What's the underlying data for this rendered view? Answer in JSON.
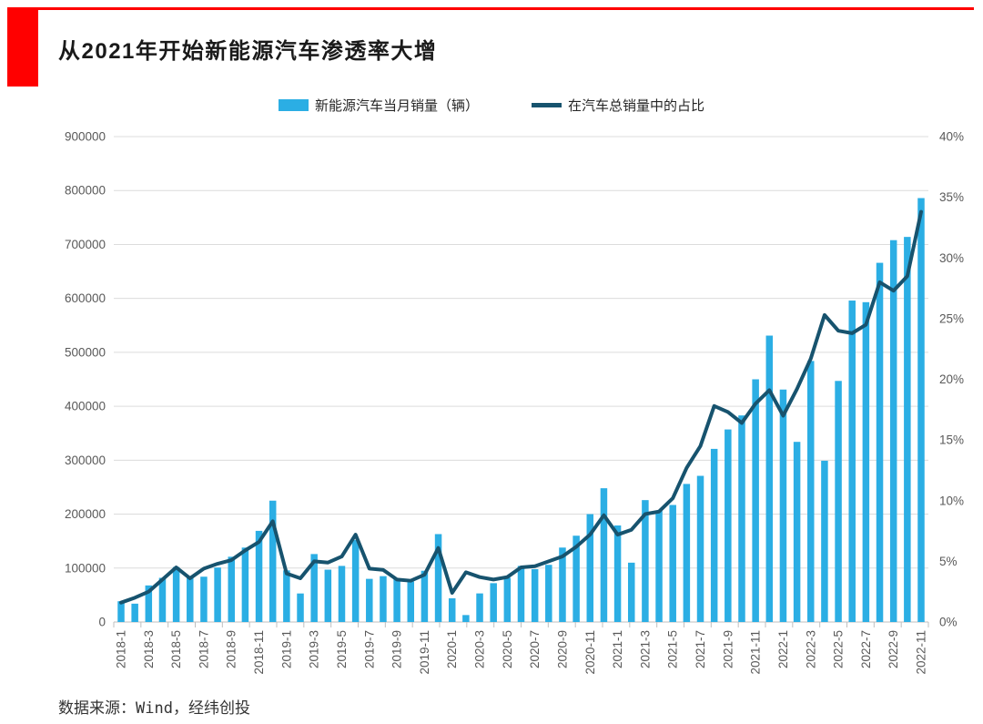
{
  "accent_color": "#FF0000",
  "header": {
    "title": "从2021年开始新能源汽车渗透率大增"
  },
  "legend": [
    {
      "label": "新能源汽车当月销量（辆）",
      "color": "#2BAEE4",
      "type": "bar"
    },
    {
      "label": "在汽车总销量中的占比",
      "color": "#17536E",
      "type": "line"
    }
  ],
  "footer": {
    "source": "数据来源：Wind，经纬创投"
  },
  "chart_data": {
    "type": "bar+line combo",
    "title": "从2021年开始新能源汽车渗透率大增",
    "grid": "horizontal",
    "legend_position": "top",
    "x_label_step": 2,
    "categories": [
      "2018-1",
      "2018-2",
      "2018-3",
      "2018-4",
      "2018-5",
      "2018-6",
      "2018-7",
      "2018-8",
      "2018-9",
      "2018-10",
      "2018-11",
      "2018-12",
      "2019-1",
      "2019-2",
      "2019-3",
      "2019-4",
      "2019-5",
      "2019-6",
      "2019-7",
      "2019-8",
      "2019-9",
      "2019-10",
      "2019-11",
      "2019-12",
      "2020-1",
      "2020-2",
      "2020-3",
      "2020-4",
      "2020-5",
      "2020-6",
      "2020-7",
      "2020-8",
      "2020-9",
      "2020-10",
      "2020-11",
      "2020-12",
      "2021-1",
      "2021-2",
      "2021-3",
      "2021-4",
      "2021-5",
      "2021-6",
      "2021-7",
      "2021-8",
      "2021-9",
      "2021-10",
      "2021-11",
      "2021-12",
      "2022-1",
      "2022-2",
      "2022-3",
      "2022-4",
      "2022-5",
      "2022-6",
      "2022-7",
      "2022-8",
      "2022-9",
      "2022-10",
      "2022-11"
    ],
    "series": [
      {
        "name": "新能源汽车当月销量（辆）",
        "type": "bar",
        "axis": "left",
        "color": "#2BAEE4",
        "values": [
          38500,
          34000,
          67800,
          81900,
          102000,
          84000,
          84000,
          101000,
          121000,
          138000,
          169000,
          225000,
          95700,
          52900,
          126000,
          97000,
          104000,
          152000,
          80000,
          85000,
          80000,
          75000,
          95000,
          163000,
          44000,
          12900,
          53000,
          72000,
          82000,
          104000,
          98000,
          106000,
          138000,
          160000,
          200000,
          248000,
          179000,
          110000,
          226000,
          206000,
          217000,
          256000,
          271000,
          321000,
          357000,
          383000,
          450000,
          531000,
          431000,
          334000,
          484000,
          299000,
          447000,
          596000,
          593000,
          666000,
          708000,
          714000,
          786000
        ]
      },
      {
        "name": "在汽车总销量中的占比",
        "type": "line",
        "axis": "right",
        "color": "#17536E",
        "values": [
          1.6,
          2.0,
          2.5,
          3.5,
          4.5,
          3.6,
          4.4,
          4.8,
          5.1,
          5.9,
          6.6,
          8.3,
          4.0,
          3.6,
          5.0,
          4.9,
          5.4,
          7.2,
          4.4,
          4.3,
          3.5,
          3.4,
          3.9,
          6.1,
          2.4,
          4.1,
          3.7,
          3.5,
          3.7,
          4.5,
          4.6,
          5.0,
          5.4,
          6.2,
          7.2,
          8.8,
          7.2,
          7.6,
          8.9,
          9.1,
          10.2,
          12.7,
          14.5,
          17.8,
          17.3,
          16.4,
          18.0,
          19.1,
          17.0,
          19.2,
          21.7,
          25.3,
          24.0,
          23.8,
          24.5,
          28.0,
          27.3,
          28.5,
          33.8
        ]
      }
    ],
    "left_axis": {
      "min": 0,
      "max": 900000,
      "step": 100000,
      "tick_labels": [
        "0",
        "100000",
        "200000",
        "300000",
        "400000",
        "500000",
        "600000",
        "700000",
        "800000",
        "900000"
      ]
    },
    "right_axis": {
      "min": 0,
      "max": 40,
      "step": 5,
      "tick_labels": [
        "0%",
        "5%",
        "10%",
        "15%",
        "20%",
        "25%",
        "30%",
        "35%",
        "40%"
      ]
    }
  }
}
